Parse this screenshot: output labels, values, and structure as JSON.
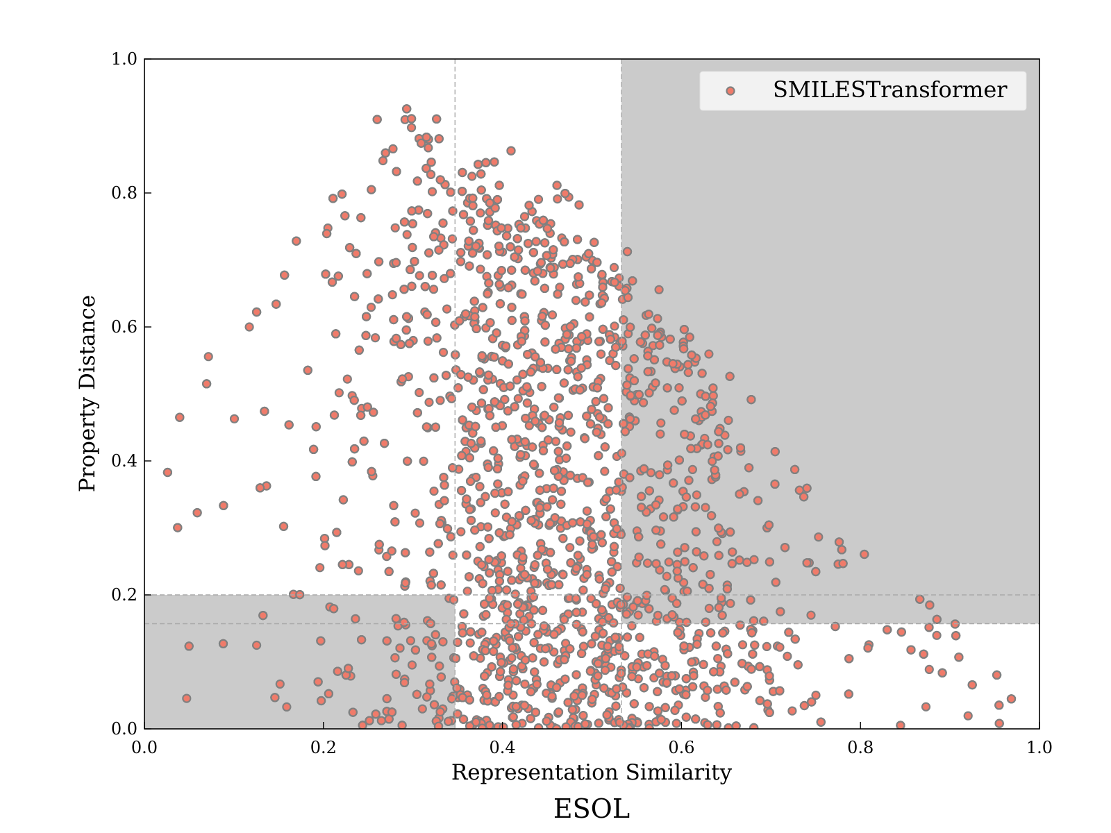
{
  "chart_data": {
    "type": "scatter",
    "title": "ESOL",
    "xlabel": "Representation Similarity",
    "ylabel": "Property Distance",
    "xlim": [
      0.0,
      1.0
    ],
    "ylim": [
      0.0,
      1.0
    ],
    "x_ticks": [
      0.0,
      0.2,
      0.4,
      0.6,
      0.8,
      1.0
    ],
    "y_ticks": [
      0.0,
      0.2,
      0.4,
      0.6,
      0.8,
      1.0
    ],
    "x_tick_labels": [
      "0.0",
      "0.2",
      "0.4",
      "0.6",
      "0.8",
      "1.0"
    ],
    "y_tick_labels": [
      "0.0",
      "0.2",
      "0.4",
      "0.6",
      "0.8",
      "1.0"
    ],
    "grid": false,
    "legend": {
      "position": "top-right",
      "entries": [
        "SMILESTransformer"
      ]
    },
    "series": [
      {
        "name": "SMILESTransformer",
        "marker_fill": "#f07b6a",
        "marker_edge": "#808080",
        "distribution": "dense cloud; upper envelope rises from ~0.45 at x=0.05 to ~0.95 near x=0.3, falls to ~0.6 at x=0.6, ~0.3 at x=0.8, ~0.05 at x=1.0; bulk of points between x=0.08 and x=0.95"
      }
    ],
    "reference_lines": {
      "vertical": [
        0.347,
        0.533
      ],
      "horizontal": [
        0.2,
        0.157
      ]
    },
    "shaded_regions": [
      {
        "x": [
          0.0,
          0.347
        ],
        "y": [
          0.0,
          0.2
        ],
        "label": "lower-left quadrant"
      },
      {
        "x": [
          0.533,
          1.0
        ],
        "y": [
          0.157,
          1.0
        ],
        "label": "upper-right quadrant"
      }
    ],
    "colors": {
      "shade": "#cbcbcb",
      "ref_line": "#a9a9a9",
      "legend_bg": "#f2f2f2"
    }
  }
}
